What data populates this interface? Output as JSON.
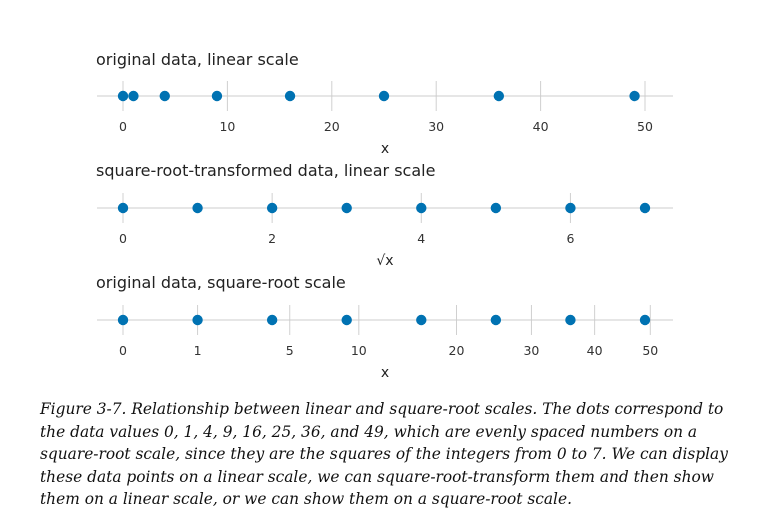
{
  "colors": {
    "dot": "#0072B2",
    "axis": "#cccccc",
    "grid": "#d0d0d0",
    "text": "#222222"
  },
  "chart_data": [
    {
      "type": "scatter",
      "title": "original data, linear scale",
      "xlabel": "x",
      "scale": "linear",
      "xlim": [
        -1,
        51
      ],
      "ticks": [
        0,
        10,
        20,
        30,
        40,
        50
      ],
      "tick_labels": [
        "0",
        "10",
        "20",
        "30",
        "40",
        "50"
      ],
      "x": [
        0,
        1,
        4,
        9,
        16,
        25,
        36,
        49
      ],
      "grid": true
    },
    {
      "type": "scatter",
      "title": "square-root-transformed data, linear scale",
      "xlabel": "√x",
      "scale": "linear",
      "xlim": [
        -0.1,
        7.1
      ],
      "ticks": [
        0,
        2,
        4,
        6
      ],
      "tick_labels": [
        "0",
        "2",
        "4",
        "6"
      ],
      "x": [
        0,
        1,
        2,
        3,
        4,
        5,
        6,
        7
      ],
      "grid": true
    },
    {
      "type": "scatter",
      "title": "original data, square-root scale",
      "xlabel": "x",
      "scale": "sqrt",
      "xlim": [
        0,
        51
      ],
      "ticks": [
        0,
        1,
        5,
        10,
        20,
        30,
        40,
        50
      ],
      "tick_labels": [
        "0",
        "1",
        "5",
        "10",
        "20",
        "30",
        "40",
        "50"
      ],
      "x": [
        0,
        1,
        4,
        9,
        16,
        25,
        36,
        49
      ],
      "grid": true
    }
  ],
  "caption": {
    "label": "Figure 3-7.",
    "text": "Relationship between linear and square-root scales. The dots correspond to the data values 0, 1, 4, 9, 16, 25, 36, and 49, which are evenly spaced numbers on a square-root scale, since they are the squares of the integers from 0 to 7. We can display these data points on a linear scale, we can square-root-transform them and then show them on a linear scale, or we can show them on a square-root scale."
  }
}
